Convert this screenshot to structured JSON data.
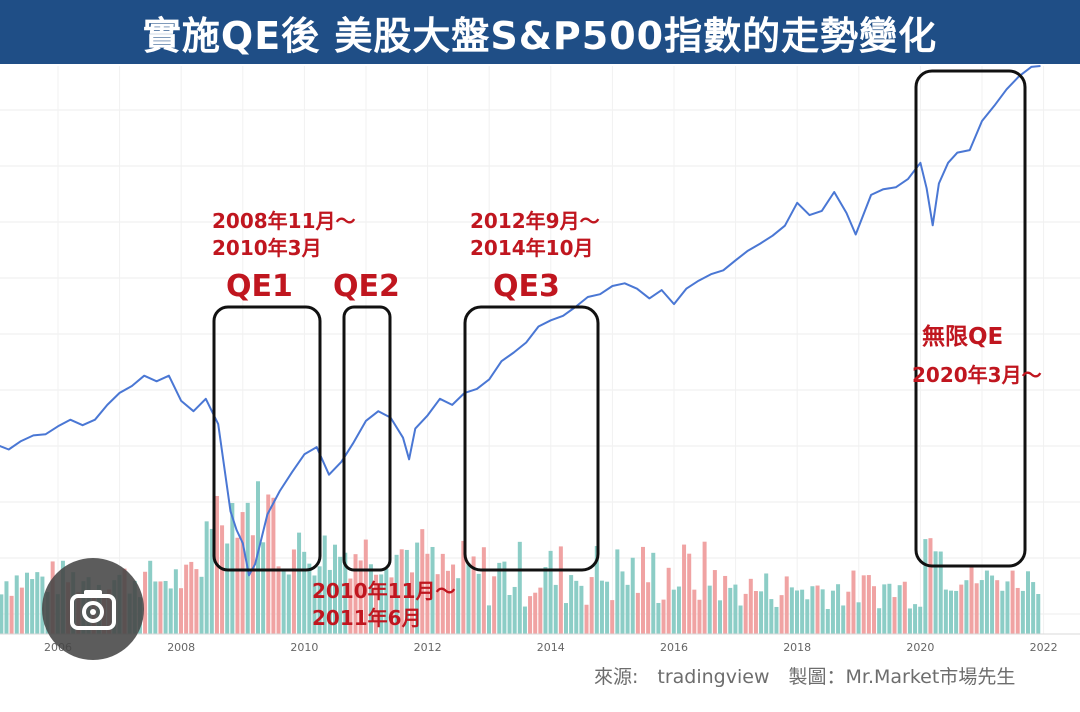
{
  "title": "實施QE後 美股大盤S&P500指數的走勢變化",
  "source_text": "來源:　tradingview　製圖：Mr.Market市場先生",
  "chart_data": {
    "type": "line",
    "xlim": [
      2005.0,
      2022.5
    ],
    "ylim": [
      600,
      4500
    ],
    "x_ticks": [
      2006,
      2008,
      2010,
      2012,
      2014,
      2016,
      2018,
      2020,
      2022
    ],
    "x_tick_labels": [
      "2006",
      "2008",
      "2010",
      "2012",
      "2014",
      "2016",
      "2018",
      "2020",
      "2022"
    ],
    "grid": true,
    "series": [
      {
        "x": [
          2005.0,
          2005.2,
          2005.4,
          2005.6,
          2005.8,
          2006.0,
          2006.2,
          2006.4,
          2006.6,
          2006.8,
          2007.0,
          2007.2,
          2007.4,
          2007.6,
          2007.8,
          2008.0,
          2008.2,
          2008.4,
          2008.6,
          2008.8,
          2008.9,
          2009.0,
          2009.1,
          2009.2,
          2009.4,
          2009.6,
          2009.8,
          2010.0,
          2010.2,
          2010.4,
          2010.6,
          2010.8,
          2011.0,
          2011.2,
          2011.4,
          2011.6,
          2011.7,
          2011.8,
          2012.0,
          2012.2,
          2012.4,
          2012.6,
          2012.8,
          2013.0,
          2013.2,
          2013.4,
          2013.6,
          2013.8,
          2014.0,
          2014.2,
          2014.4,
          2014.6,
          2014.8,
          2015.0,
          2015.2,
          2015.4,
          2015.6,
          2015.8,
          2016.0,
          2016.2,
          2016.4,
          2016.6,
          2016.8,
          2017.0,
          2017.2,
          2017.4,
          2017.6,
          2017.8,
          2018.0,
          2018.2,
          2018.4,
          2018.6,
          2018.8,
          2018.95,
          2019.2,
          2019.4,
          2019.6,
          2019.8,
          2020.0,
          2020.1,
          2020.2,
          2020.3,
          2020.45,
          2020.6,
          2020.8,
          2021.0,
          2021.2,
          2021.4,
          2021.6,
          2021.8,
          2021.95
        ],
        "y": [
          1180,
          1160,
          1195,
          1220,
          1225,
          1260,
          1290,
          1265,
          1290,
          1360,
          1420,
          1455,
          1510,
          1480,
          1510,
          1380,
          1330,
          1390,
          1270,
          930,
          870,
          830,
          740,
          770,
          920,
          1000,
          1070,
          1140,
          1170,
          1060,
          1110,
          1190,
          1285,
          1330,
          1300,
          1210,
          1120,
          1250,
          1310,
          1390,
          1360,
          1420,
          1440,
          1490,
          1590,
          1640,
          1700,
          1800,
          1840,
          1870,
          1930,
          2000,
          2020,
          2080,
          2100,
          2060,
          1990,
          2050,
          1950,
          2060,
          2120,
          2170,
          2200,
          2280,
          2360,
          2420,
          2490,
          2580,
          2800,
          2680,
          2720,
          2910,
          2700,
          2500,
          2880,
          2940,
          2960,
          3050,
          3230,
          2950,
          2584,
          3000,
          3230,
          3350,
          3380,
          3750,
          3960,
          4200,
          4400,
          4550,
          4700
        ]
      }
    ],
    "volume_colors": {
      "up": "#8ccdc6",
      "down": "#f0a3a3"
    },
    "line_color": "#4a77d4",
    "annotations": [
      {
        "label": "QE1",
        "period": "2008年11月～\n2010年3月"
      },
      {
        "label": "QE2",
        "period": "2010年11月～\n2011年6月"
      },
      {
        "label": "QE3",
        "period": "2012年9月～\n2014年10月"
      },
      {
        "label": "無限QE",
        "period": "2020年3月～"
      }
    ]
  }
}
